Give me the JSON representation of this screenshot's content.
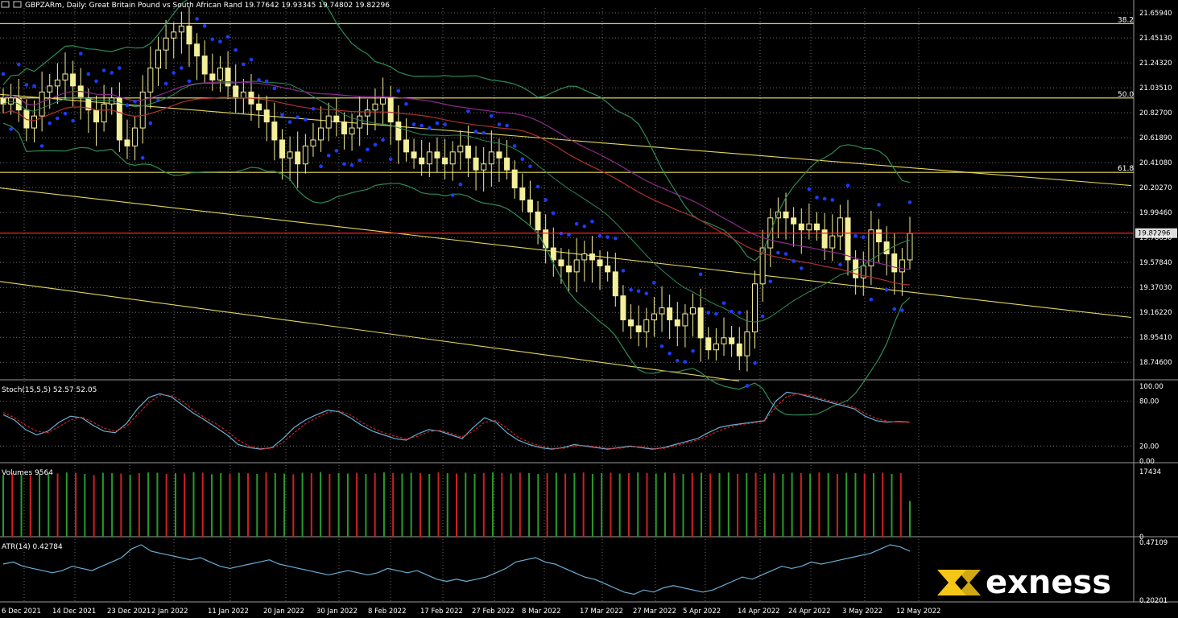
{
  "window": {
    "symbol": "GBPZARm",
    "header_text": "GBPZARm, Daily:  Great Britain Pound vs South African Rand   19.77642 19.93345 19.74802 19.82296"
  },
  "brand": {
    "name": "exness",
    "color": "#f5c518"
  },
  "colors": {
    "candle": "#f4ef9a",
    "sar": "#1a3cff",
    "fib": "#e6d85a",
    "bollinger": "#2e8b57",
    "ma_purple": "#8b2a8b",
    "ma_red": "#b03030",
    "price_line": "#ff2020",
    "stoch_main": "#6aaed6",
    "stoch_signal": "#d02020",
    "volume_up": "#2a9a2a",
    "volume_down": "#d02020",
    "atr": "#6aaed6",
    "grid": "#6b6b6b",
    "panel_border": "#9a9a9a"
  },
  "chart_data": [
    {
      "type": "candlestick",
      "title": "GBPZARm, Daily:  Great Britain Pound vs South African Rand",
      "ylim": [
        18.6,
        21.7
      ],
      "y_ticks": [
        "21.65940",
        "21.45130",
        "21.24320",
        "21.03510",
        "20.82700",
        "20.61890",
        "20.41080",
        "20.20270",
        "19.99460",
        "19.78650",
        "19.57840",
        "19.37030",
        "19.16220",
        "18.95410",
        "18.74600"
      ],
      "current_price": "19.82296",
      "current_price_line_label": "19.82296",
      "fib_levels": [
        {
          "label": "38.2",
          "price": 21.57
        },
        {
          "label": "50.0",
          "price": 20.95
        },
        {
          "label": "61.8",
          "price": 20.33
        }
      ],
      "x_ticks": [
        "6 Dec 2021",
        "14 Dec 2021",
        "23 Dec 2021",
        "2 Jan 2022",
        "11 Jan 2022",
        "20 Jan 2022",
        "30 Jan 2022",
        "8 Feb 2022",
        "17 Feb 2022",
        "27 Feb 2022",
        "8 Mar 2022",
        "17 Mar 2022",
        "27 Mar 2022",
        "5 Apr 2022",
        "14 Apr 2022",
        "24 Apr 2022",
        "3 May 2022",
        "12 May 2022"
      ],
      "trendlines": [
        {
          "from": [
            0,
            20.98
          ],
          "to": [
            1405,
            20.22
          ]
        },
        {
          "from": [
            0,
            20.2
          ],
          "to": [
            1405,
            19.12
          ]
        },
        {
          "from": [
            0,
            19.42
          ],
          "to": [
            918,
            18.59
          ]
        }
      ],
      "candles_close": [
        20.9,
        20.95,
        20.85,
        20.7,
        20.8,
        21.0,
        21.05,
        21.1,
        21.15,
        21.05,
        20.95,
        20.85,
        20.75,
        20.9,
        20.95,
        20.6,
        20.55,
        20.7,
        21.0,
        21.2,
        21.35,
        21.45,
        21.5,
        21.55,
        21.4,
        21.3,
        21.15,
        21.1,
        21.2,
        21.05,
        20.95,
        21.0,
        20.9,
        20.85,
        20.75,
        20.6,
        20.45,
        20.5,
        20.4,
        20.55,
        20.6,
        20.7,
        20.8,
        20.75,
        20.65,
        20.7,
        20.8,
        20.85,
        20.9,
        20.95,
        20.75,
        20.6,
        20.5,
        20.45,
        20.4,
        20.5,
        20.45,
        20.4,
        20.5,
        20.55,
        20.45,
        20.35,
        20.4,
        20.5,
        20.45,
        20.35,
        20.2,
        20.1,
        20.0,
        19.85,
        19.7,
        19.6,
        19.55,
        19.5,
        19.6,
        19.65,
        19.6,
        19.55,
        19.5,
        19.3,
        19.1,
        19.05,
        19.0,
        19.1,
        19.15,
        19.2,
        19.1,
        19.05,
        19.15,
        19.2,
        18.95,
        18.85,
        18.9,
        18.95,
        18.9,
        18.8,
        19.0,
        19.4,
        19.7,
        19.95,
        20.0,
        19.95,
        19.9,
        19.85,
        19.9,
        19.85,
        19.7,
        19.8,
        19.95,
        19.6,
        19.45,
        19.55,
        19.85,
        19.75,
        19.65,
        19.5,
        19.6,
        19.82
      ]
    },
    {
      "type": "line",
      "title": "Stoch(15,5,5) 52.57 52.05",
      "ylim": [
        0,
        100
      ],
      "y_ticks": [
        "100.00",
        "80.00",
        "20.00",
        "0.00"
      ],
      "series": [
        {
          "name": "main",
          "values": [
            62,
            55,
            42,
            35,
            40,
            52,
            60,
            58,
            48,
            40,
            38,
            50,
            70,
            85,
            90,
            86,
            75,
            64,
            55,
            45,
            35,
            22,
            18,
            16,
            18,
            30,
            45,
            55,
            62,
            68,
            66,
            58,
            48,
            40,
            35,
            30,
            28,
            36,
            42,
            40,
            35,
            30,
            45,
            58,
            52,
            38,
            28,
            22,
            18,
            16,
            18,
            22,
            20,
            18,
            16,
            18,
            20,
            18,
            16,
            18,
            22,
            26,
            30,
            38,
            45,
            48,
            50,
            52,
            54,
            80,
            92,
            90,
            86,
            82,
            78,
            74,
            70,
            60,
            54,
            52,
            53,
            52
          ]
        },
        {
          "name": "signal",
          "values": [
            65,
            58,
            48,
            40,
            38,
            46,
            55,
            59,
            52,
            44,
            40,
            46,
            62,
            78,
            88,
            88,
            80,
            68,
            58,
            50,
            40,
            28,
            20,
            17,
            17,
            25,
            38,
            50,
            58,
            65,
            67,
            62,
            52,
            44,
            38,
            33,
            30,
            33,
            39,
            41,
            37,
            32,
            40,
            52,
            54,
            44,
            32,
            25,
            20,
            17,
            17,
            20,
            21,
            19,
            17,
            17,
            19,
            19,
            17,
            17,
            20,
            24,
            28,
            34,
            41,
            46,
            49,
            51,
            53,
            72,
            86,
            90,
            88,
            84,
            80,
            76,
            72,
            64,
            57,
            53,
            52,
            52
          ]
        }
      ]
    },
    {
      "type": "bar",
      "title": "Volumes 9564",
      "y_ticks": [
        "17434",
        "0"
      ],
      "ylim": [
        0,
        17434
      ],
      "values": [
        16500,
        17000,
        16800,
        16500,
        17100,
        17000,
        16900,
        17200,
        17000,
        16800,
        16500,
        17100,
        17000,
        16900,
        16600,
        17000,
        17200,
        17100,
        16800,
        17000,
        16900,
        17300,
        17100,
        16700,
        17000,
        16900,
        17100,
        17000,
        16800,
        17200,
        17000,
        16900,
        16700,
        17100,
        17000,
        17300,
        16800,
        17000,
        16900,
        17100,
        16800,
        17000,
        17200,
        17000,
        16900,
        17100,
        17000,
        16800,
        17200,
        17000,
        16900,
        17100,
        16800,
        17000,
        17200,
        17000,
        16900,
        17100,
        17000,
        16800,
        17000,
        17100,
        16900,
        17000,
        17200,
        16800,
        17000,
        17100,
        16900,
        17000,
        17200,
        17000,
        16900,
        17100,
        17000,
        16800,
        17000,
        17100,
        16900,
        17000,
        17200,
        16800,
        17000,
        17100,
        16900,
        17000,
        16800,
        17100,
        17000,
        16900,
        17200,
        17000,
        16800,
        17100,
        17000,
        16900,
        17000,
        17100,
        16800,
        17000,
        9564
      ],
      "up": [
        true,
        false,
        true,
        false,
        true,
        true,
        false,
        true,
        false,
        true,
        false,
        true,
        true,
        false,
        true,
        false,
        true,
        true,
        false,
        true,
        false,
        true,
        false,
        true,
        true,
        false,
        true,
        false,
        true,
        false,
        true,
        true,
        false,
        true,
        false,
        true,
        false,
        true,
        true,
        false,
        true,
        false,
        true,
        false,
        true,
        true,
        false,
        true,
        false,
        true,
        false,
        true,
        true,
        false,
        true,
        false,
        true,
        false,
        true,
        true,
        false,
        true,
        false,
        true,
        false,
        true,
        true,
        false,
        true,
        false,
        true,
        false,
        true,
        true,
        false,
        true,
        false,
        true,
        false,
        true,
        true,
        false,
        true,
        false,
        true,
        false,
        true,
        true,
        false,
        true,
        false,
        true,
        false,
        true,
        true,
        false,
        true,
        false,
        true,
        false,
        true
      ]
    },
    {
      "type": "line",
      "title": "ATR(14) 0.42784",
      "y_ticks": [
        "0.47109",
        "0.20201"
      ],
      "ylim": [
        0.20201,
        0.47109
      ],
      "series": [
        {
          "name": "ATR",
          "values": [
            0.37,
            0.38,
            0.36,
            0.35,
            0.34,
            0.33,
            0.34,
            0.36,
            0.35,
            0.34,
            0.36,
            0.38,
            0.4,
            0.44,
            0.46,
            0.43,
            0.42,
            0.41,
            0.4,
            0.39,
            0.4,
            0.38,
            0.36,
            0.35,
            0.36,
            0.37,
            0.38,
            0.39,
            0.37,
            0.36,
            0.35,
            0.34,
            0.33,
            0.32,
            0.33,
            0.34,
            0.33,
            0.32,
            0.33,
            0.35,
            0.34,
            0.33,
            0.34,
            0.32,
            0.3,
            0.29,
            0.3,
            0.29,
            0.3,
            0.31,
            0.33,
            0.35,
            0.38,
            0.39,
            0.4,
            0.38,
            0.37,
            0.35,
            0.33,
            0.31,
            0.3,
            0.28,
            0.26,
            0.24,
            0.23,
            0.25,
            0.24,
            0.26,
            0.27,
            0.26,
            0.25,
            0.24,
            0.25,
            0.27,
            0.29,
            0.31,
            0.3,
            0.32,
            0.34,
            0.36,
            0.35,
            0.36,
            0.38,
            0.37,
            0.38,
            0.39,
            0.4,
            0.41,
            0.42,
            0.44,
            0.46,
            0.45,
            0.43
          ]
        }
      ]
    }
  ]
}
